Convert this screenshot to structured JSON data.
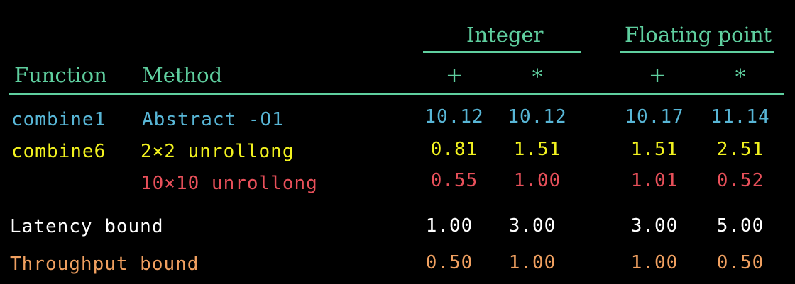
{
  "header": {
    "group_integer": "Integer",
    "group_float": "Floating point",
    "col_function": "Function",
    "col_method": "Method",
    "op_plus": "+",
    "op_times": "*"
  },
  "rows": [
    {
      "function": "combine1",
      "method": "Abstract -O1",
      "int_add": "10.12",
      "int_mul": "10.12",
      "fp_add": "10.17",
      "fp_mul": "11.14",
      "color": "#58b6d6"
    },
    {
      "function": "combine6",
      "method": "2×2 unrollong",
      "int_add": "0.81",
      "int_mul": "1.51",
      "fp_add": "1.51",
      "fp_mul": "2.51",
      "color": "#f2f21f"
    },
    {
      "function": "",
      "method": "10×10 unrollong",
      "int_add": "0.55",
      "int_mul": "1.00",
      "fp_add": "1.01",
      "fp_mul": "0.52",
      "color": "#e8505a"
    },
    {
      "function": "Latency bound",
      "method": "",
      "int_add": "1.00",
      "int_mul": "3.00",
      "fp_add": "3.00",
      "fp_mul": "5.00",
      "color": "#ffffff"
    },
    {
      "function": "Throughput bound",
      "method": "",
      "int_add": "0.50",
      "int_mul": "1.00",
      "fp_add": "1.00",
      "fp_mul": "0.50",
      "color": "#f0a060"
    }
  ],
  "colors": {
    "header": "#5fcf9f",
    "background": "#000000"
  }
}
